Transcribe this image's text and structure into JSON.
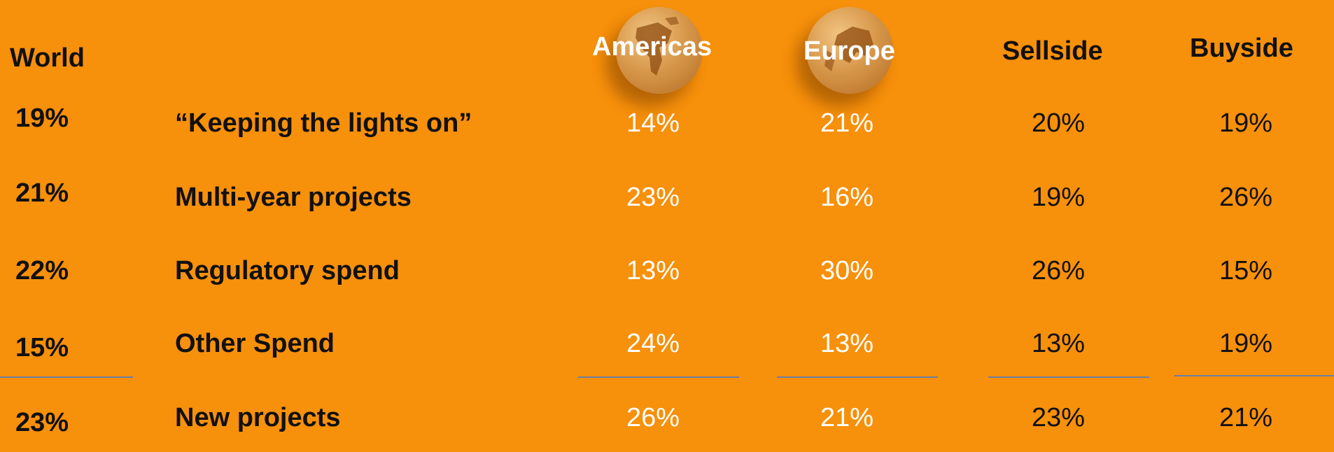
{
  "headers": {
    "world": "World",
    "americas": "Americas",
    "europe": "Europe",
    "sellside": "Sellside",
    "buyside": "Buyside"
  },
  "icons": {
    "americas_globe": "globe-americas-icon",
    "europe_globe": "globe-europe-icon"
  },
  "rows": [
    {
      "world": "19%",
      "label": "“Keeping the lights on”",
      "americas": "14%",
      "europe": "21%",
      "sellside": "20%",
      "buyside": "19%"
    },
    {
      "world": "21%",
      "label": "Multi-year projects",
      "americas": "23%",
      "europe": "16%",
      "sellside": "19%",
      "buyside": "26%"
    },
    {
      "world": "22%",
      "label": "Regulatory spend",
      "americas": "13%",
      "europe": "30%",
      "sellside": "26%",
      "buyside": "15%"
    },
    {
      "world": "15%",
      "label": "Other Spend",
      "americas": "24%",
      "europe": "13%",
      "sellside": "13%",
      "buyside": "19%"
    },
    {
      "world": "23%",
      "label": "New projects",
      "americas": "26%",
      "europe": "21%",
      "sellside": "23%",
      "buyside": "21%"
    }
  ],
  "colors": {
    "background": "#f7900a",
    "dark_text": "#111111",
    "light_text": "#ffffff",
    "separator": "#6a7fa3"
  }
}
